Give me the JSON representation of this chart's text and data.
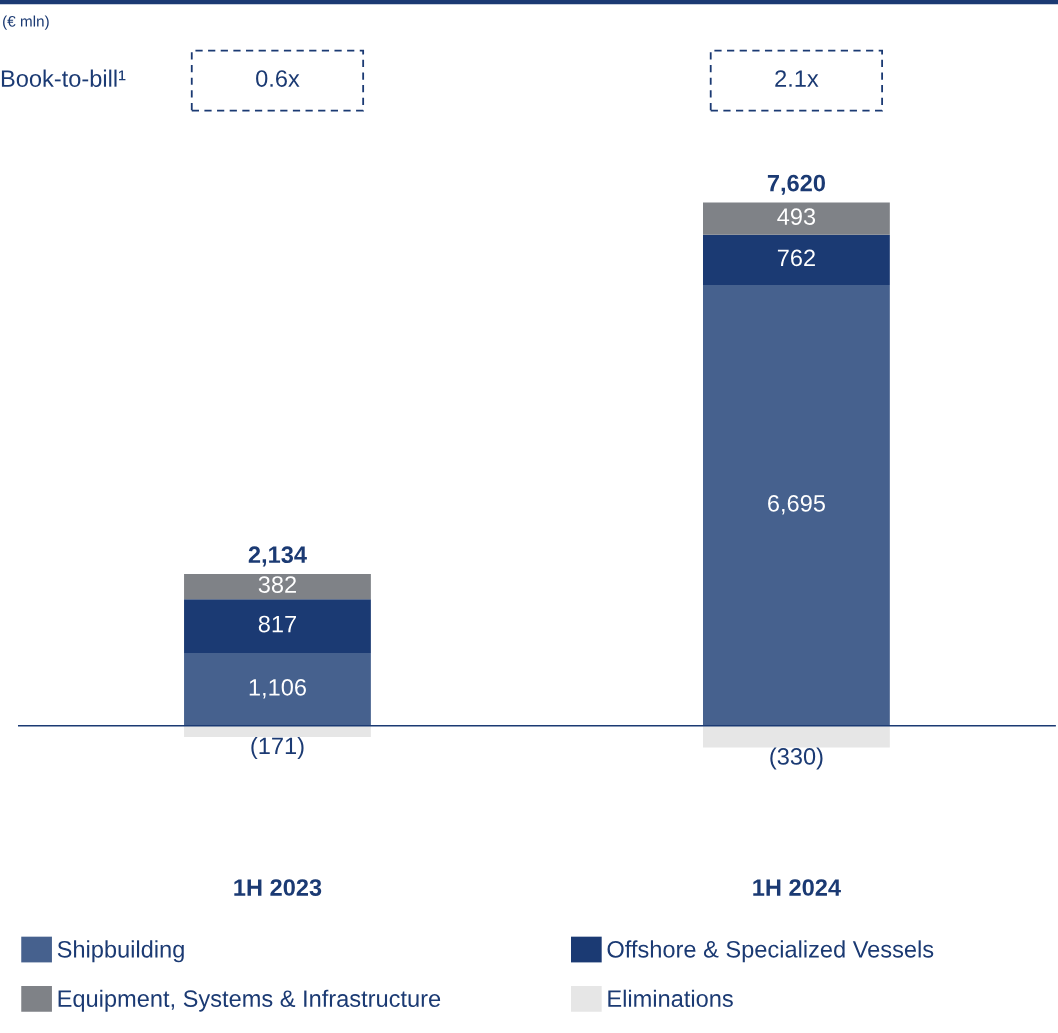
{
  "chart_data": {
    "type": "bar",
    "stacked": true,
    "categories": [
      "1H 2023",
      "1H 2024"
    ],
    "series": [
      {
        "name": "Shipbuilding",
        "color": "#46618e",
        "values": [
          1106,
          6695
        ],
        "value_labels": [
          "1,106",
          "6,695"
        ]
      },
      {
        "name": "Offshore & Specialized Vessels",
        "color": "#1b3a73",
        "values": [
          817,
          762
        ],
        "value_labels": [
          "817",
          "762"
        ]
      },
      {
        "name": "Equipment, Systems & Infrastructure",
        "color": "#7f8287",
        "values": [
          382,
          493
        ],
        "value_labels": [
          "382",
          "493"
        ]
      },
      {
        "name": "Eliminations",
        "color": "#e6e6e6",
        "values": [
          -171,
          -330
        ],
        "value_labels": [
          "(171)",
          "(330)"
        ]
      }
    ],
    "totals": [
      "2,134",
      "7,620"
    ],
    "annotations": [
      "(€ mln)",
      "Book-to-bill¹",
      "0.6x",
      "2.1x"
    ],
    "ref_lines": [
      {
        "axis": "y",
        "value": 0,
        "color": "#1b3a73"
      }
    ],
    "legend": "bottom",
    "grid": false
  }
}
